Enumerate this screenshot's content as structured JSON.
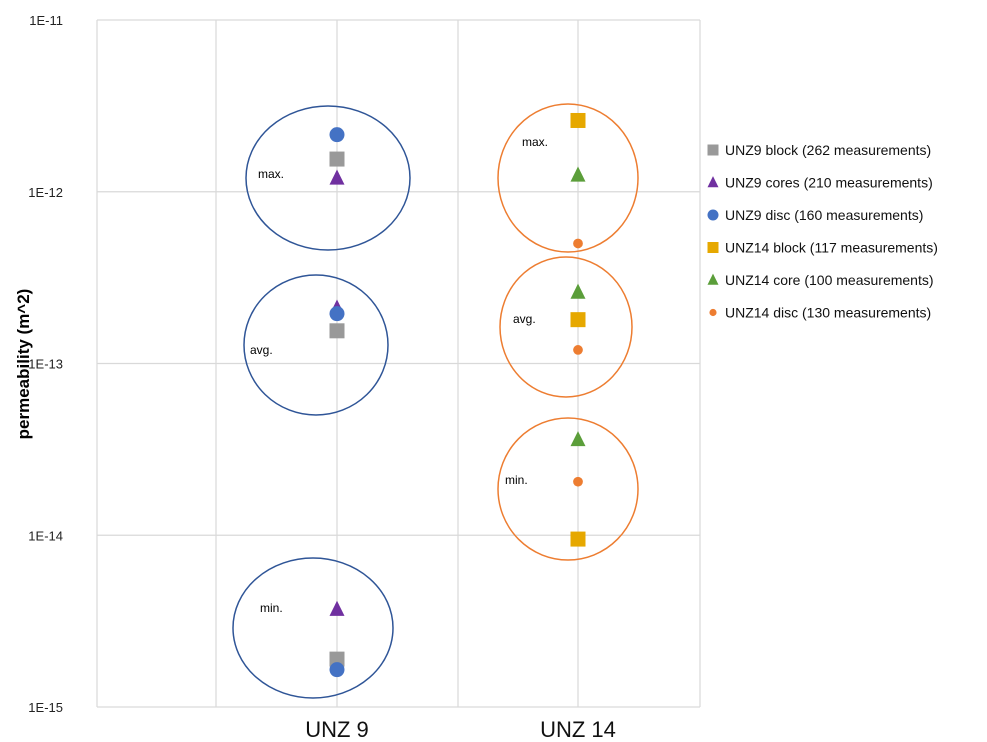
{
  "chart_data": {
    "type": "scatter",
    "ylabel": "permeability (m^2)",
    "xlabel": "",
    "y_scale": "log",
    "ylim": [
      1e-15,
      1e-11
    ],
    "y_ticks": [
      {
        "value": 1e-11,
        "label": "1E-11"
      },
      {
        "value": 1e-12,
        "label": "1E-12"
      },
      {
        "value": 1e-13,
        "label": "1E-13"
      },
      {
        "value": 1e-14,
        "label": "1E-14"
      },
      {
        "value": 1e-15,
        "label": "1E-15"
      }
    ],
    "categories": [
      "UNZ 9",
      "UNZ 14"
    ],
    "grid": true,
    "legend_position": "right",
    "series": [
      {
        "name": "UNZ9 block (262 measurements)",
        "marker": "square",
        "color": "#999999",
        "category": "UNZ 9",
        "points": {
          "max": 1.55e-12,
          "avg": 1.55e-13,
          "min": 1.9e-15
        }
      },
      {
        "name": "UNZ9 cores (210 measurements)",
        "marker": "triangle",
        "color": "#7030a0",
        "category": "UNZ 9",
        "points": {
          "max": 1.2e-12,
          "avg": 2.1e-13,
          "min": 3.7e-15
        }
      },
      {
        "name": "UNZ9 disc (160 measurements)",
        "marker": "circle",
        "color": "#4472c4",
        "category": "UNZ 9",
        "points": {
          "max": 2.15e-12,
          "avg": 1.95e-13,
          "min": 1.65e-15
        }
      },
      {
        "name": "UNZ14 block (117 measurements)",
        "marker": "square",
        "color": "#e6a800",
        "category": "UNZ 14",
        "points": {
          "max": 2.6e-12,
          "avg": 1.8e-13,
          "min": 9.5e-15
        }
      },
      {
        "name": "UNZ14 core (100 measurements)",
        "marker": "triangle",
        "color": "#5b9e3a",
        "category": "UNZ 14",
        "points": {
          "max": 1.25e-12,
          "avg": 2.6e-13,
          "min": 3.6e-14
        }
      },
      {
        "name": "UNZ14 disc (130 measurements)",
        "marker": "smallcircle",
        "color": "#ed7d31",
        "category": "UNZ 14",
        "points": {
          "max": 5e-13,
          "avg": 1.2e-13,
          "min": 2.05e-14
        }
      }
    ],
    "annotations": [
      {
        "category": "UNZ 9",
        "group": "max",
        "label": "max.",
        "color": "#2f5597"
      },
      {
        "category": "UNZ 9",
        "group": "avg",
        "label": "avg.",
        "color": "#2f5597"
      },
      {
        "category": "UNZ 9",
        "group": "min",
        "label": "min.",
        "color": "#2f5597"
      },
      {
        "category": "UNZ 14",
        "group": "max",
        "label": "max.",
        "color": "#ed7d31"
      },
      {
        "category": "UNZ 14",
        "group": "avg",
        "label": "avg.",
        "color": "#ed7d31"
      },
      {
        "category": "UNZ 14",
        "group": "min",
        "label": "min.",
        "color": "#ed7d31"
      }
    ]
  }
}
